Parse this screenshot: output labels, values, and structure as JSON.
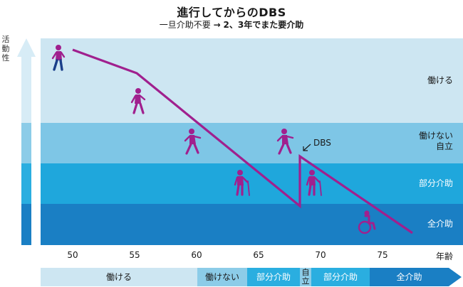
{
  "header": {
    "title": "進行してからのDBS",
    "subtitle_pre": "一旦介助不要",
    "subtitle_arrow": "→",
    "subtitle_post": "2、3年でまた要介助"
  },
  "yaxis": {
    "label_chars": [
      "活",
      "動",
      "性"
    ]
  },
  "bands": [
    {
      "label_lines": [
        "働ける"
      ],
      "color": "#cde6f2"
    },
    {
      "label_lines": [
        "働けない",
        "自立"
      ],
      "color": "#7ec6e6"
    },
    {
      "label_lines": [
        "部分介助"
      ],
      "color": "#1fa7dc"
    },
    {
      "label_lines": [
        "全介助"
      ],
      "color": "#1a7fc4"
    }
  ],
  "xaxis": {
    "ticks": [
      "50",
      "55",
      "60",
      "65",
      "70",
      "75"
    ],
    "unit": "年齢"
  },
  "annotation": {
    "dbs": "DBS"
  },
  "stages": [
    {
      "label": "働ける",
      "color": "#cde6f2"
    },
    {
      "label": "働けない",
      "color": "#8ccce8"
    },
    {
      "label": "部分介助",
      "color": "#2aaee0"
    },
    {
      "label": "自立",
      "color": "#8ccce8"
    },
    {
      "label": "部分介助",
      "color": "#2aaee0"
    },
    {
      "label": "全介助",
      "color": "#1a7fc4"
    }
  ],
  "colors": {
    "line": "#a0208e",
    "figure": "#a0208e",
    "figure_first": "#1a3f8a",
    "arrow": "#d7ecf6"
  },
  "icons": [
    "walking-person-icon",
    "walking-person-icon",
    "stumbling-person-icon",
    "stumbling-person-icon",
    "person-with-cane-icon",
    "person-with-cane-icon",
    "wheelchair-icon"
  ]
}
